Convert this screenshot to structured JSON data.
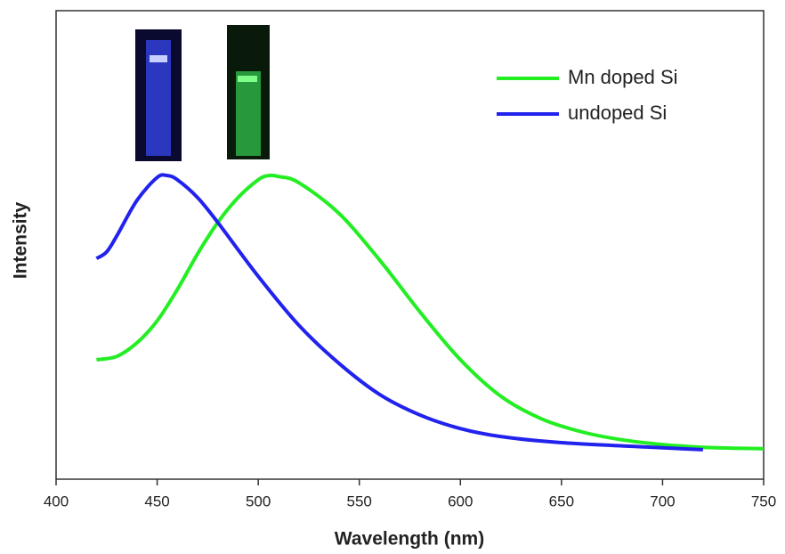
{
  "chart_data": {
    "type": "line",
    "xlabel": "Wavelength (nm)",
    "ylabel": "Intensity",
    "xlim": [
      400,
      750
    ],
    "xticks": [
      400,
      450,
      500,
      550,
      600,
      650,
      700,
      750
    ],
    "ylim": [
      0,
      100
    ],
    "legend": "upper right",
    "series": [
      {
        "name": "Mn doped Si",
        "color": "#22ee22",
        "x": [
          420,
          430,
          440,
          450,
          460,
          470,
          480,
          490,
          500,
          505,
          510,
          520,
          540,
          560,
          580,
          600,
          620,
          640,
          660,
          680,
          700,
          720,
          750
        ],
        "values": [
          25.5,
          26.2,
          29.1,
          33.8,
          40.5,
          48.1,
          54.8,
          60.1,
          63.9,
          64.8,
          64.6,
          63.3,
          56.7,
          46.8,
          35.7,
          25.5,
          17.7,
          12.9,
          10.1,
          8.4,
          7.4,
          6.8,
          6.5
        ]
      },
      {
        "name": "undoped Si",
        "color": "#2222ee",
        "x": [
          420,
          425,
          430,
          440,
          450,
          455,
          460,
          470,
          480,
          500,
          520,
          540,
          560,
          580,
          600,
          620,
          650,
          700,
          720
        ],
        "values": [
          47.1,
          48.5,
          51.9,
          59.5,
          64.4,
          64.8,
          63.9,
          60.1,
          54.8,
          43.3,
          32.9,
          24.7,
          18.1,
          13.7,
          10.8,
          9.1,
          7.8,
          6.7,
          6.3
        ]
      }
    ]
  }
}
